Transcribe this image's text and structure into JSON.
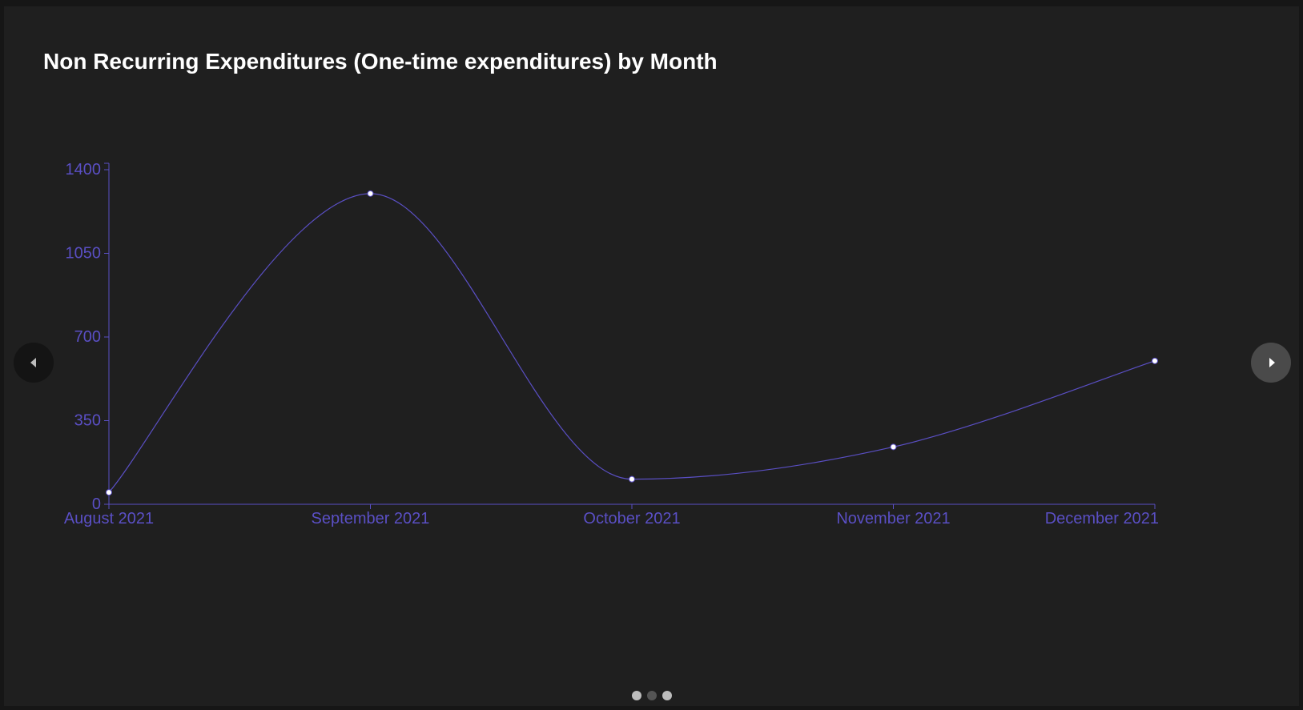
{
  "chart_data": {
    "type": "line",
    "title": "Non Recurring Expenditures (One-time expenditures) by Month",
    "categories": [
      "August 2021",
      "September 2021",
      "October 2021",
      "November 2021",
      "December 2021"
    ],
    "series": [
      {
        "values": [
          50,
          1300,
          105,
          240,
          600
        ]
      }
    ],
    "yticks": [
      0,
      350,
      700,
      1050,
      1400
    ],
    "ylim": [
      0,
      1400
    ],
    "xlabel": "",
    "ylabel": "",
    "grid": false,
    "legend": "none",
    "curve": "smooth",
    "colors": {
      "line": "#5a4fc4",
      "axis": "#5a4fc4",
      "tick_text": "#5a4fc4",
      "marker_fill": "#ffffff"
    }
  },
  "carousel": {
    "prev_icon": "chevron-left-icon",
    "next_icon": "chevron-right-icon",
    "slides": 3,
    "active_slide": 2
  }
}
